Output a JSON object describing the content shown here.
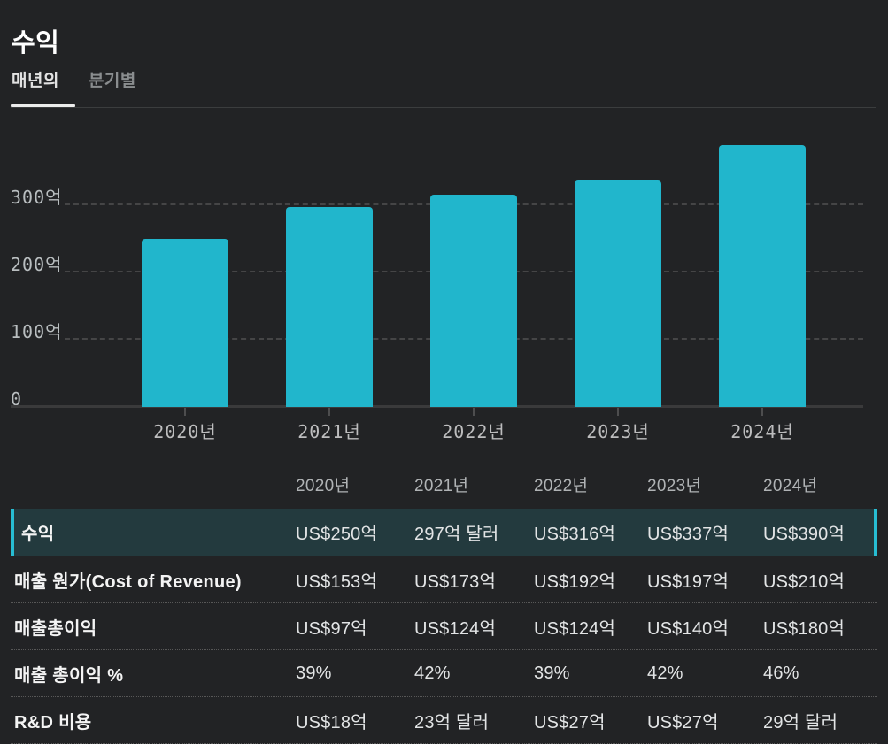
{
  "page": {
    "title": "수익"
  },
  "tabs": [
    {
      "label": "매년의",
      "active": true
    },
    {
      "label": "분기별",
      "active": false
    }
  ],
  "chart_data": {
    "type": "bar",
    "title": "수익",
    "categories": [
      "2020년",
      "2021년",
      "2022년",
      "2023년",
      "2024년"
    ],
    "values": [
      250,
      297,
      316,
      337,
      390
    ],
    "unit": "억",
    "xlabel": "",
    "ylabel": "",
    "ylim": [
      0,
      420
    ],
    "y_axis": [
      {
        "label": "300억",
        "value": 300
      },
      {
        "label": "200억",
        "value": 200
      },
      {
        "label": "100억",
        "value": 100
      },
      {
        "label": "0",
        "value": 0
      }
    ],
    "grid": "horizontal-dashed",
    "legend": "none",
    "bar_color": "#21b6cc"
  },
  "table": {
    "columns": [
      "2020년",
      "2021년",
      "2022년",
      "2023년",
      "2024년"
    ],
    "rows": [
      {
        "label": "수익",
        "highlighted": true,
        "values": [
          "US$250억",
          "297억 달러",
          "US$316억",
          "US$337억",
          "US$390억"
        ]
      },
      {
        "label": "매출 원가(Cost of Revenue)",
        "highlighted": false,
        "values": [
          "US$153억",
          "US$173억",
          "US$192억",
          "US$197억",
          "US$210억"
        ]
      },
      {
        "label": "매출총이익",
        "highlighted": false,
        "values": [
          "US$97억",
          "US$124억",
          "US$124억",
          "US$140억",
          "US$180억"
        ]
      },
      {
        "label": "매출 총이익 %",
        "highlighted": false,
        "values": [
          "39%",
          "42%",
          "39%",
          "42%",
          "46%"
        ]
      },
      {
        "label": "R&D 비용",
        "highlighted": false,
        "values": [
          "US$18억",
          "23억 달러",
          "US$27억",
          "US$27억",
          "29억 달러"
        ]
      }
    ]
  },
  "colors": {
    "background": "#222325",
    "accent_cyan": "#21b6cc",
    "highlight_row_bg": "#233a3e",
    "highlight_row_border": "#27bdd3"
  }
}
